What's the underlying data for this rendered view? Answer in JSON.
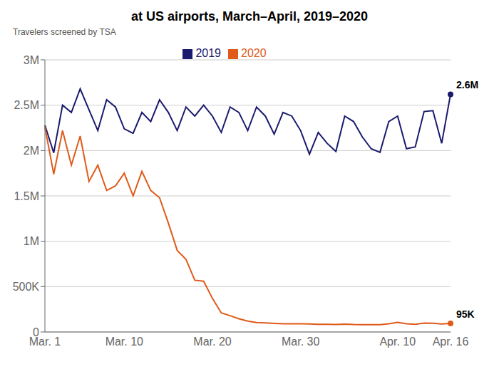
{
  "chart_data": {
    "type": "line",
    "title": "at US airports, March–April, 2019–2020",
    "ylabel": "Travelers screened by TSA",
    "categories": [
      "Mar. 1",
      null,
      null,
      null,
      null,
      null,
      null,
      null,
      null,
      "Mar. 10",
      null,
      null,
      null,
      null,
      null,
      null,
      null,
      null,
      null,
      "Mar. 20",
      null,
      null,
      null,
      null,
      null,
      null,
      null,
      null,
      null,
      "Mar. 30",
      null,
      null,
      null,
      null,
      null,
      null,
      null,
      null,
      null,
      null,
      "Apr. 10",
      null,
      null,
      null,
      null,
      null,
      "Apr. 16"
    ],
    "series": [
      {
        "name": "2019",
        "color": "#1a1a6e",
        "values": [
          2280000,
          1975000,
          2500000,
          2420000,
          2680000,
          2450000,
          2220000,
          2560000,
          2480000,
          2240000,
          2190000,
          2420000,
          2320000,
          2560000,
          2420000,
          2220000,
          2480000,
          2380000,
          2500000,
          2380000,
          2200000,
          2480000,
          2420000,
          2220000,
          2480000,
          2380000,
          2180000,
          2420000,
          2380000,
          2220000,
          1960000,
          2200000,
          2080000,
          1990000,
          2380000,
          2320000,
          2150000,
          2020000,
          1980000,
          2320000,
          2380000,
          2020000,
          2040000,
          2430000,
          2440000,
          2080000,
          2620000
        ]
      },
      {
        "name": "2020",
        "color": "#e05a1a",
        "values": [
          2260000,
          1740000,
          2220000,
          1840000,
          2160000,
          1660000,
          1840000,
          1560000,
          1610000,
          1750000,
          1500000,
          1770000,
          1560000,
          1480000,
          1200000,
          900000,
          800000,
          570000,
          560000,
          370000,
          210000,
          180000,
          145000,
          120000,
          105000,
          100000,
          95000,
          90000,
          90000,
          90000,
          88000,
          85000,
          85000,
          82000,
          87000,
          82000,
          80000,
          80000,
          80000,
          90000,
          105000,
          90000,
          85000,
          98000,
          97000,
          88000,
          95000
        ]
      }
    ],
    "annotations": [
      {
        "series": "2019",
        "text": "2.6M"
      },
      {
        "series": "2020",
        "text": "95K"
      }
    ],
    "ylim": [
      0,
      3000000
    ],
    "yticks": [
      0,
      {
        "value": 500000,
        "label": "500K"
      },
      {
        "value": 1000000,
        "label": "1M"
      },
      {
        "value": 1500000,
        "label": "1.5M"
      },
      {
        "value": 2000000,
        "label": "2M"
      },
      {
        "value": 2500000,
        "label": "2.5M"
      },
      {
        "value": 3000000,
        "label": "3M"
      }
    ],
    "grid": true,
    "legend": "top"
  }
}
